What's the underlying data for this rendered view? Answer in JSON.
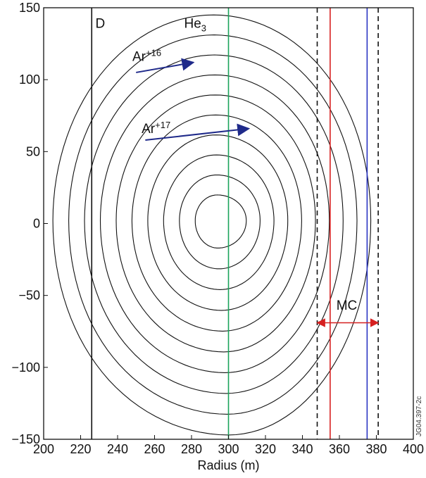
{
  "chart_data": {
    "type": "line",
    "title": "",
    "xlabel": "Radius (m)",
    "ylabel": "",
    "xlim": [
      200,
      400
    ],
    "ylim": [
      -150,
      150
    ],
    "xticks": [
      200,
      220,
      240,
      260,
      280,
      300,
      320,
      340,
      360,
      380,
      400
    ],
    "yticks": [
      -150,
      -100,
      -50,
      0,
      50,
      100,
      150
    ],
    "xtick_labels": [
      "200",
      "220",
      "240",
      "260",
      "280",
      "300",
      "320",
      "340",
      "360",
      "380",
      "400"
    ],
    "ytick_labels": [
      "−150",
      "−100",
      "−50",
      "0",
      "50",
      "100",
      "150"
    ],
    "grid": false,
    "flux_surfaces": {
      "center": [
        294,
        2
      ],
      "count": 10,
      "outer_boundary": {
        "left_x": 205,
        "right_x": 377,
        "top_y": 145,
        "bottom_y": -147,
        "top_peak_x": 292,
        "bottom_peak_x": 300
      },
      "inner_surface": {
        "left_x": 285,
        "right_x": 307,
        "top_y": 15,
        "bottom_y": -12
      }
    },
    "vertical_lines": [
      {
        "label": "D",
        "x": 226,
        "color": "#111111",
        "style": "solid"
      },
      {
        "label": "He3",
        "x": 300,
        "color": "#1aa35a",
        "style": "solid"
      },
      {
        "label": "",
        "x": 355,
        "color": "#d62020",
        "style": "solid"
      },
      {
        "label": "",
        "x": 375,
        "color": "#2a35c4",
        "style": "solid"
      },
      {
        "label": "",
        "x": 348,
        "color": "#111111",
        "style": "dashed"
      },
      {
        "label": "",
        "x": 381,
        "color": "#111111",
        "style": "dashed"
      }
    ],
    "annotations": {
      "d_label": "D",
      "he_label": "He",
      "he_sub": "3",
      "ar16_label": "Ar",
      "ar16_sup": "+16",
      "ar17_label": "Ar",
      "ar17_sup": "+17",
      "mc_label": "MC",
      "ar16_arrow": {
        "from": [
          250,
          105
        ],
        "to": [
          281,
          112
        ]
      },
      "ar17_arrow": {
        "from": [
          255,
          58
        ],
        "to": [
          311,
          66
        ]
      },
      "mc_span": {
        "from": 348,
        "to": 381,
        "y": -69
      }
    },
    "side_note": "JG04.397-2c",
    "colors": {
      "axes": "#111111",
      "contours": "#111111",
      "arrows": "#1f2a8a",
      "mc_arrow": "#d62020"
    }
  }
}
